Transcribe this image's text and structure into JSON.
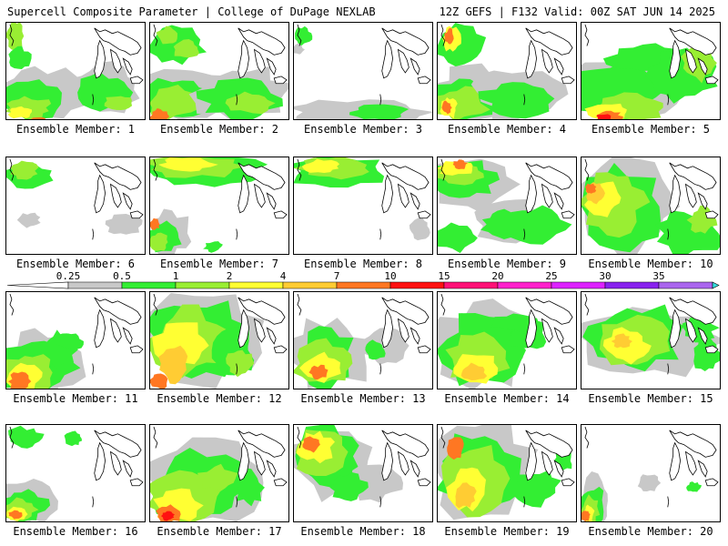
{
  "header": {
    "left_title": "Supercell Composite Parameter | College of DuPage NEXLAB",
    "right_title": "12Z GEFS | F132 Valid: 00Z SAT JUN 14 2025"
  },
  "members": [
    {
      "label": "Ensemble Member: 1"
    },
    {
      "label": "Ensemble Member: 2"
    },
    {
      "label": "Ensemble Member: 3"
    },
    {
      "label": "Ensemble Member: 4"
    },
    {
      "label": "Ensemble Member: 5"
    },
    {
      "label": "Ensemble Member: 6"
    },
    {
      "label": "Ensemble Member: 7"
    },
    {
      "label": "Ensemble Member: 8"
    },
    {
      "label": "Ensemble Member: 9"
    },
    {
      "label": "Ensemble Member: 10"
    },
    {
      "label": "Ensemble Member: 11"
    },
    {
      "label": "Ensemble Member: 12"
    },
    {
      "label": "Ensemble Member: 13"
    },
    {
      "label": "Ensemble Member: 14"
    },
    {
      "label": "Ensemble Member: 15"
    },
    {
      "label": "Ensemble Member: 16"
    },
    {
      "label": "Ensemble Member: 17"
    },
    {
      "label": "Ensemble Member: 18"
    },
    {
      "label": "Ensemble Member: 19"
    },
    {
      "label": "Ensemble Member: 20"
    }
  ],
  "colorbar": {
    "levels": [
      {
        "label": "0.25",
        "color": "#c8c8c8"
      },
      {
        "label": "0.5",
        "color": "#33ee33"
      },
      {
        "label": "1",
        "color": "#99ee33"
      },
      {
        "label": "2",
        "color": "#ffff33"
      },
      {
        "label": "4",
        "color": "#ffcc33"
      },
      {
        "label": "7",
        "color": "#ff7722"
      },
      {
        "label": "10",
        "color": "#ff1111"
      },
      {
        "label": "15",
        "color": "#ff1177"
      },
      {
        "label": "20",
        "color": "#ff22cc"
      },
      {
        "label": "25",
        "color": "#dd22ff"
      },
      {
        "label": "30",
        "color": "#8822ee"
      },
      {
        "label": "35",
        "color": "#aa66ee"
      }
    ],
    "end_color": "#33dddd"
  },
  "colors": {
    "none": "#ffffff",
    "gray": "#c8c8c8",
    "green": "#33ee33",
    "lime": "#99ee33",
    "yellow": "#ffff33",
    "gold": "#ffcc33",
    "orange": "#ff7722",
    "red": "#ff1111"
  }
}
